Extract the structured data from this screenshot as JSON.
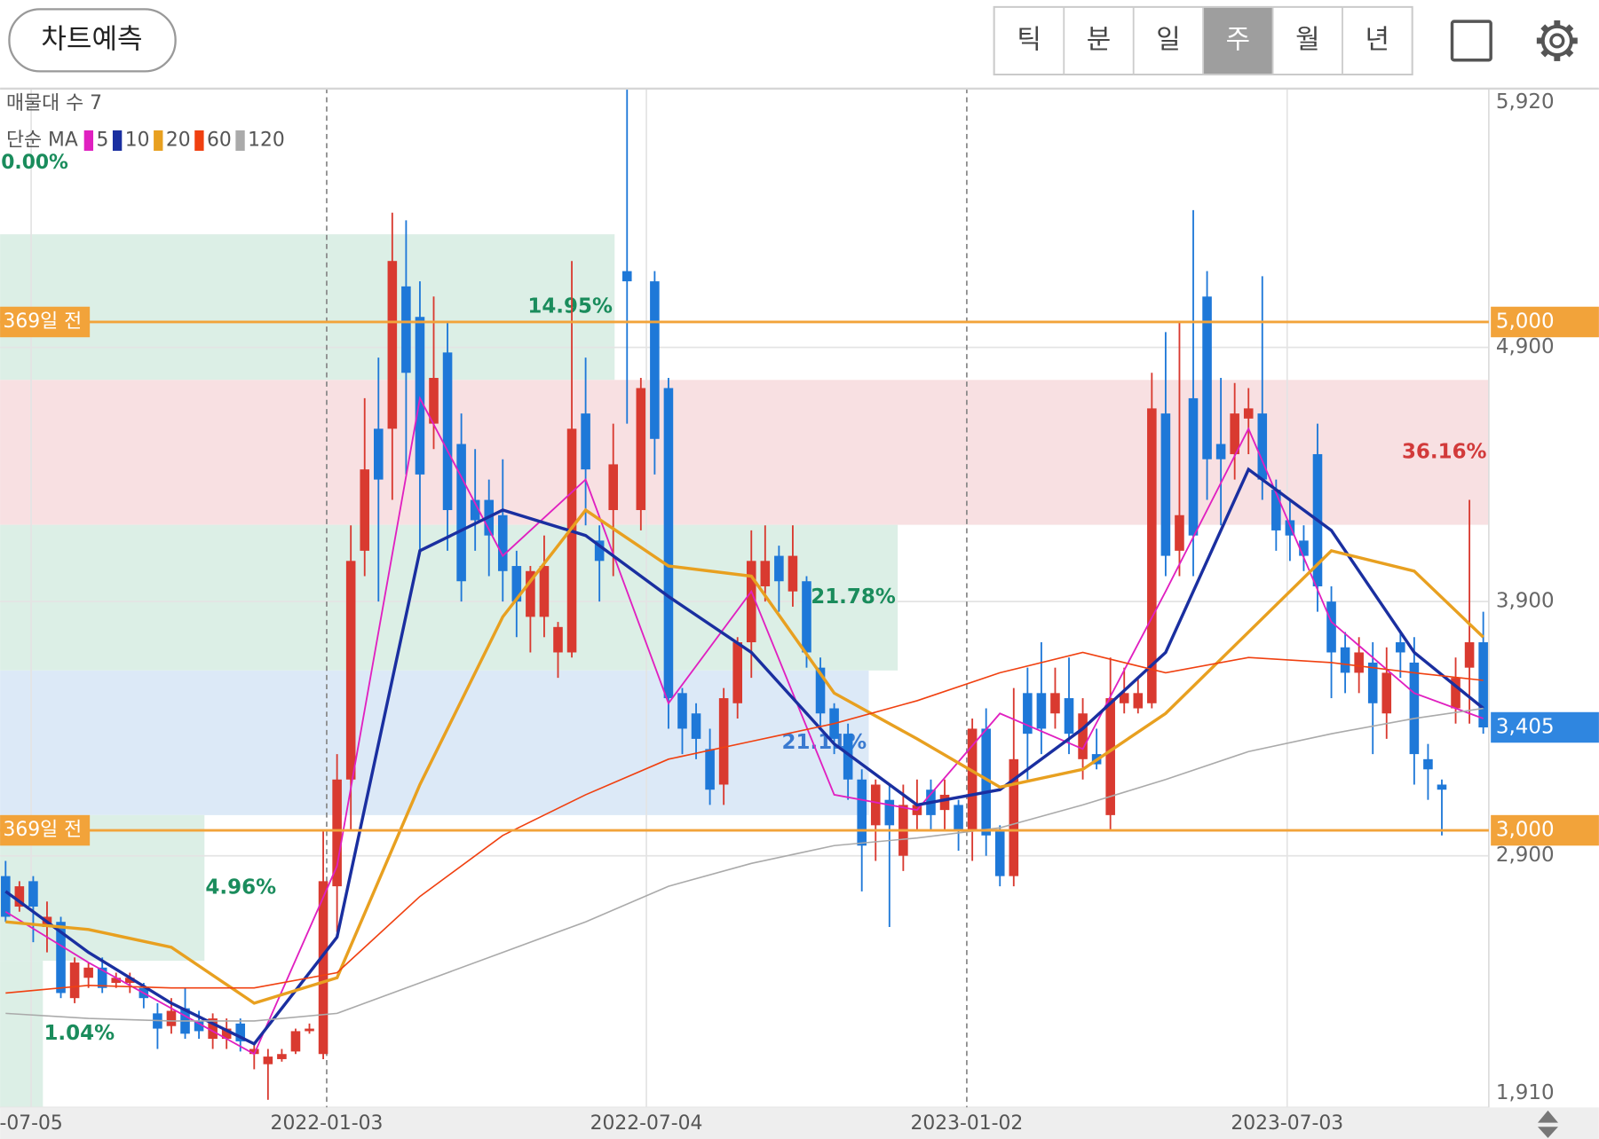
{
  "toolbar": {
    "predict_button": "차트예측",
    "periods": [
      "틱",
      "분",
      "일",
      "주",
      "월",
      "년"
    ],
    "selected_period": "주"
  },
  "chart_data": {
    "type": "candlestick",
    "volume_profile_label": "매물대 수 7",
    "ma_label": "단순 MA",
    "xlim": [
      -0.4,
      107.4
    ],
    "xticks": [
      {
        "value": 1.85,
        "label": "-07-05"
      },
      {
        "value": 23.25,
        "label": "2022-01-03"
      },
      {
        "value": 46.4,
        "label": "2022-07-04"
      },
      {
        "value": 69.6,
        "label": "2023-01-02"
      },
      {
        "value": 92.8,
        "label": "2023-07-03"
      }
    ],
    "ylim": [
      1910,
      5920
    ],
    "yticks": [
      {
        "value": 5920,
        "label": "5,920"
      },
      {
        "value": 4900,
        "label": "4,900"
      },
      {
        "value": 3900,
        "label": "3,900"
      },
      {
        "value": 2900,
        "label": "2,900"
      },
      {
        "value": 1910,
        "label": "1,910"
      }
    ],
    "grid": true,
    "candles": {
      "up_color": "#d93a30",
      "down_color": "#1e78d8",
      "open": [
        2820,
        2700,
        2800,
        2620,
        2640,
        2340,
        2420,
        2460,
        2400,
        2400,
        2380,
        2280,
        2230,
        2300,
        2250,
        2180,
        2180,
        2240,
        2120,
        2080,
        2100,
        2130,
        2210,
        2120,
        2780,
        3200,
        4100,
        4580,
        4580,
        5140,
        5020,
        4600,
        4880,
        4520,
        4300,
        4300,
        4240,
        4040,
        3840,
        3840,
        3700,
        3700,
        4640,
        4140,
        4260,
        5200,
        4260,
        5160,
        4740,
        3540,
        3460,
        3320,
        3180,
        3500,
        3740,
        3960,
        4080,
        3940,
        3980,
        3640,
        3480,
        3380,
        3200,
        3020,
        3120,
        2900,
        3060,
        3160,
        3080,
        3100,
        3000,
        3400,
        3000,
        2820,
        3540,
        3540,
        3460,
        3520,
        3280,
        3300,
        3060,
        3500,
        3480,
        3500,
        4640,
        4100,
        4700,
        5100,
        4520,
        4480,
        4620,
        4640,
        4340,
        4220,
        4140,
        4480,
        3900,
        3720,
        3620,
        3660,
        3460,
        3740,
        3660,
        3280,
        3180,
        3480,
        3640,
        3740
      ],
      "high": [
        2880,
        2800,
        2820,
        2720,
        2660,
        2500,
        2480,
        2500,
        2440,
        2440,
        2400,
        2320,
        2340,
        2380,
        2290,
        2280,
        2260,
        2260,
        2160,
        2140,
        2140,
        2220,
        2240,
        3000,
        3300,
        4200,
        4700,
        4860,
        5430,
        5400,
        5160,
        5100,
        5000,
        4640,
        4500,
        4380,
        4460,
        4100,
        4040,
        4160,
        3820,
        5240,
        4860,
        4200,
        4600,
        5920,
        4780,
        5200,
        4780,
        3560,
        3500,
        3400,
        3560,
        3760,
        4180,
        4200,
        4120,
        4200,
        4000,
        3680,
        3500,
        3420,
        3240,
        3200,
        3180,
        3180,
        3200,
        3200,
        3200,
        3120,
        3440,
        3480,
        3020,
        3560,
        3640,
        3740,
        3640,
        3680,
        3520,
        3400,
        3680,
        3640,
        3600,
        4800,
        4960,
        5000,
        5440,
        5200,
        4780,
        4760,
        4740,
        5180,
        4380,
        4300,
        4200,
        4600,
        3960,
        3780,
        3760,
        3740,
        3720,
        3780,
        3760,
        3340,
        3200,
        3680,
        4300,
        3860
      ],
      "low": [
        2640,
        2680,
        2560,
        2520,
        2340,
        2320,
        2380,
        2360,
        2380,
        2360,
        2300,
        2140,
        2200,
        2180,
        2180,
        2140,
        2140,
        2130,
        2060,
        1940,
        2090,
        2120,
        2200,
        2100,
        2600,
        3000,
        4000,
        3900,
        4300,
        4400,
        4100,
        4500,
        4100,
        3900,
        4100,
        4000,
        3900,
        3760,
        3700,
        3760,
        3600,
        3680,
        4200,
        3900,
        4000,
        4600,
        4180,
        4400,
        3400,
        3300,
        3280,
        3100,
        3100,
        3440,
        3600,
        3900,
        3860,
        3880,
        3640,
        3400,
        3300,
        3120,
        2760,
        2880,
        2620,
        2840,
        3000,
        3000,
        3000,
        2920,
        2880,
        2900,
        2780,
        2780,
        3200,
        3300,
        3400,
        3300,
        3200,
        3240,
        3000,
        3460,
        3460,
        3480,
        4000,
        4000,
        4000,
        4300,
        4200,
        4380,
        4480,
        4300,
        4100,
        4060,
        4020,
        3860,
        3520,
        3540,
        3540,
        3300,
        3360,
        3600,
        3180,
        3120,
        2980,
        3420,
        3420,
        3380
      ],
      "close": [
        2660,
        2780,
        2700,
        2660,
        2360,
        2480,
        2460,
        2380,
        2420,
        2420,
        2340,
        2220,
        2290,
        2200,
        2210,
        2260,
        2220,
        2170,
        2140,
        2110,
        2120,
        2210,
        2220,
        2800,
        3200,
        4060,
        4420,
        4380,
        5240,
        4800,
        4400,
        4780,
        4260,
        3980,
        4220,
        4160,
        4020,
        3900,
        4020,
        4040,
        3800,
        4580,
        4420,
        4060,
        4440,
        5160,
        4740,
        4540,
        3520,
        3400,
        3360,
        3160,
        3520,
        3740,
        4060,
        4060,
        3980,
        4080,
        3700,
        3460,
        3360,
        3200,
        2940,
        3180,
        3020,
        3100,
        3100,
        3060,
        3140,
        3000,
        3400,
        2980,
        2820,
        3280,
        3380,
        3400,
        3540,
        3380,
        3460,
        3260,
        3520,
        3540,
        3540,
        4660,
        4080,
        4240,
        4160,
        4460,
        4460,
        4640,
        4660,
        4380,
        4180,
        4160,
        4080,
        3960,
        3700,
        3620,
        3700,
        3500,
        3620,
        3700,
        3300,
        3240,
        3160,
        3600,
        3740,
        3405
      ]
    },
    "moving_averages": [
      {
        "name": "5",
        "color": "#e020c0",
        "width": 1.6,
        "x": [
          0,
          6,
          12,
          18,
          24,
          30,
          36,
          42,
          48,
          54,
          60,
          66,
          72,
          78,
          84,
          90,
          96,
          102,
          107
        ],
        "values": [
          2680,
          2480,
          2300,
          2120,
          2860,
          4700,
          4080,
          4380,
          3500,
          3940,
          3140,
          3080,
          3460,
          3320,
          3940,
          4580,
          3820,
          3540,
          3440
        ]
      },
      {
        "name": "10",
        "color": "#1a2fa0",
        "width": 3,
        "x": [
          0,
          6,
          12,
          18,
          24,
          30,
          36,
          42,
          48,
          54,
          60,
          66,
          72,
          78,
          84,
          90,
          96,
          102,
          107
        ],
        "values": [
          2760,
          2520,
          2320,
          2160,
          2580,
          4100,
          4260,
          4160,
          3920,
          3700,
          3340,
          3100,
          3160,
          3400,
          3700,
          4420,
          4180,
          3700,
          3480
        ]
      },
      {
        "name": "20",
        "color": "#e8a020",
        "width": 3,
        "x": [
          0,
          6,
          12,
          18,
          24,
          30,
          36,
          42,
          48,
          54,
          60,
          66,
          72,
          78,
          84,
          90,
          96,
          102,
          107
        ],
        "values": [
          2640,
          2610,
          2540,
          2320,
          2420,
          3180,
          3840,
          4260,
          4040,
          4000,
          3540,
          3360,
          3170,
          3240,
          3460,
          3780,
          4100,
          4020,
          3760
        ]
      },
      {
        "name": "60",
        "color": "#f04010",
        "width": 1.4,
        "x": [
          0,
          6,
          12,
          18,
          24,
          30,
          36,
          42,
          48,
          54,
          60,
          66,
          72,
          78,
          84,
          90,
          96,
          102,
          107
        ],
        "values": [
          2360,
          2390,
          2380,
          2380,
          2440,
          2740,
          2980,
          3140,
          3280,
          3350,
          3420,
          3510,
          3620,
          3700,
          3620,
          3680,
          3660,
          3620,
          3590
        ]
      },
      {
        "name": "120",
        "color": "#aaaaaa",
        "width": 1.4,
        "x": [
          0,
          6,
          12,
          18,
          24,
          30,
          36,
          42,
          48,
          54,
          60,
          66,
          72,
          78,
          84,
          90,
          96,
          102,
          107
        ],
        "values": [
          2280,
          2260,
          2250,
          2250,
          2280,
          2400,
          2520,
          2640,
          2780,
          2870,
          2940,
          2970,
          3010,
          3100,
          3200,
          3310,
          3380,
          3440,
          3480
        ]
      }
    ],
    "zones": [
      {
        "x": [
          -0.4,
          44.1
        ],
        "y": [
          4772,
          5345
        ],
        "color": "#dcefe6",
        "label": "14.95%",
        "label_color": "#1a8c5c"
      },
      {
        "x": [
          -0.4,
          107.4
        ],
        "y": [
          4202,
          4772
        ],
        "color": "#f8e0e2",
        "label": "36.16%",
        "label_color": "#d23a3a"
      },
      {
        "x": [
          -0.4,
          64.6
        ],
        "y": [
          3629,
          4202
        ],
        "color": "#dcefe6",
        "label": "21.78%",
        "label_color": "#1a8c5c"
      },
      {
        "x": [
          -0.4,
          62.5
        ],
        "y": [
          3060,
          3629
        ],
        "color": "#dce9f7",
        "label": "21.11%",
        "label_color": "#3a7ad0"
      },
      {
        "x": [
          -0.4,
          14.4
        ],
        "y": [
          2487,
          3060
        ],
        "color": "#dcefe6",
        "label": "4.96%",
        "label_color": "#1a8c5c"
      },
      {
        "x": [
          -0.4,
          2.7
        ],
        "y": [
          1910,
          2487
        ],
        "color": "#dcefe6",
        "label": "1.04%",
        "label_color": "#1a8c5c"
      }
    ],
    "price_lines": [
      {
        "value": 5000,
        "label": "5,000",
        "left_label": "369일 전",
        "color": "#f2a33a"
      },
      {
        "value": 3000,
        "label": "3,000",
        "left_label": "369일 전",
        "color": "#f2a33a"
      }
    ],
    "current_price": {
      "value": 3405,
      "label": "3,405",
      "color": "#2f86e0"
    },
    "annotations": [
      {
        "text": "0.00%",
        "color": "#1a8c5c"
      }
    ]
  }
}
